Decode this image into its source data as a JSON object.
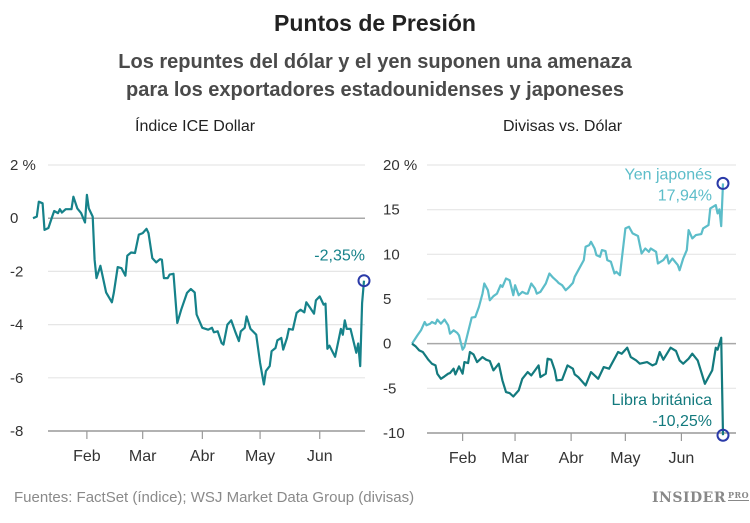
{
  "title": "Puntos de Presión",
  "subtitle": "Los repuntes del dólar y el yen suponen una amenaza para los exportadores estadounidenses y japoneses",
  "footer": "Fuentes: FactSet (índice); WSJ Market Data Group (divisas)",
  "logo": {
    "main": "INSIDER",
    "sup": "PRO"
  },
  "colors": {
    "dollar": "#16828a",
    "yen": "#5cbdc9",
    "pound": "#137a7e",
    "marker": "#2a3aa8",
    "grid": "#e6e6e6",
    "zero": "#a8a8a8"
  },
  "chart_data": [
    {
      "type": "line",
      "title": "Índice ICE Dollar",
      "ylim": [
        -8,
        2
      ],
      "yticks": [
        2,
        0,
        -2,
        -4,
        -6,
        -8
      ],
      "ytick_labels": [
        "2 %",
        "0",
        "-2",
        "-4",
        "-6",
        "-8"
      ],
      "xlim": [
        "2016-01-04",
        "2016-06-24"
      ],
      "xticks": [
        {
          "date": "2016-02-01",
          "label": "Feb"
        },
        {
          "date": "2016-03-01",
          "label": "Mar"
        },
        {
          "date": "2016-04-01",
          "label": "Abr"
        },
        {
          "date": "2016-05-01",
          "label": "May"
        },
        {
          "date": "2016-06-01",
          "label": "Jun"
        }
      ],
      "grid": true,
      "series": [
        {
          "key": "dollar",
          "end_label": "-2,35%",
          "x": [
            "01-04",
            "01-06",
            "01-07",
            "01-09",
            "01-10",
            "01-12",
            "01-14",
            "01-15",
            "01-17",
            "01-18",
            "01-19",
            "01-21",
            "01-24",
            "01-25",
            "01-27",
            "01-29",
            "01-31",
            "02-01",
            "02-02",
            "02-04",
            "02-05",
            "02-06",
            "02-08",
            "02-09",
            "02-11",
            "02-14",
            "02-15",
            "02-17",
            "02-19",
            "02-21",
            "02-22",
            "02-24",
            "02-26",
            "02-28",
            "03-01",
            "03-03",
            "03-04",
            "03-06",
            "03-08",
            "03-10",
            "03-11",
            "03-12",
            "03-14",
            "03-15",
            "03-17",
            "03-19",
            "03-21",
            "03-24",
            "03-26",
            "03-28",
            "03-29",
            "04-01",
            "04-04",
            "04-06",
            "04-07",
            "04-09",
            "04-11",
            "04-12",
            "04-14",
            "04-16",
            "04-18",
            "04-20",
            "04-21",
            "04-23",
            "04-24",
            "04-26",
            "04-29",
            "05-01",
            "05-03",
            "05-04",
            "05-06",
            "05-07",
            "05-09",
            "05-10",
            "05-12",
            "05-13",
            "05-15",
            "05-16",
            "05-18",
            "05-20",
            "05-22",
            "05-24",
            "05-25",
            "05-27",
            "05-29",
            "05-30",
            "06-01",
            "06-03",
            "06-04",
            "06-05",
            "06-06",
            "06-09",
            "06-12",
            "06-13",
            "06-14",
            "06-15",
            "06-17",
            "06-20",
            "06-21",
            "06-22",
            "06-23",
            "06-24"
          ],
          "y": [
            0,
            0.06,
            0.62,
            0.56,
            -0.44,
            -0.37,
            0.06,
            0.27,
            0.19,
            0.34,
            0.21,
            0.34,
            0.34,
            0.81,
            0.37,
            0.19,
            -0.16,
            0.88,
            0.37,
            0.06,
            -1.56,
            -2.25,
            -1.79,
            -2.12,
            -2.79,
            -3.16,
            -2.81,
            -1.84,
            -1.88,
            -2.16,
            -1.41,
            -1.29,
            -1.31,
            -0.62,
            -0.56,
            -0.4,
            -0.56,
            -1.5,
            -1.66,
            -1.54,
            -1.56,
            -2.25,
            -2.25,
            -2.12,
            -2.09,
            -3.94,
            -3.44,
            -2.81,
            -2.66,
            -2.79,
            -3.62,
            -4.12,
            -4.19,
            -4.12,
            -4.29,
            -4.25,
            -4.69,
            -4.75,
            -4.0,
            -3.84,
            -4.25,
            -4.62,
            -4.25,
            -4.12,
            -3.69,
            -4.16,
            -4.38,
            -5.44,
            -6.25,
            -5.75,
            -5.56,
            -5.0,
            -4.88,
            -4.59,
            -4.5,
            -4.94,
            -4.5,
            -4.16,
            -4.19,
            -3.56,
            -3.44,
            -3.54,
            -3.16,
            -3.37,
            -3.59,
            -3.09,
            -2.94,
            -3.25,
            -3.21,
            -4.91,
            -4.79,
            -5.21,
            -4.16,
            -4.38,
            -3.84,
            -4.16,
            -4.16,
            -5.06,
            -4.71,
            -5.56,
            -3.19,
            -2.35
          ]
        }
      ]
    },
    {
      "type": "line",
      "title": "Divisas vs. Dólar",
      "ylim": [
        -10,
        20
      ],
      "yticks": [
        20,
        15,
        10,
        5,
        0,
        -5,
        -10
      ],
      "ytick_labels": [
        "20 %",
        "15",
        "10",
        "5",
        "0",
        "-5",
        "-10"
      ],
      "xlim": [
        "2016-01-04",
        "2016-06-24"
      ],
      "xticks": [
        {
          "date": "2016-02-01",
          "label": "Feb"
        },
        {
          "date": "2016-03-01",
          "label": "Mar"
        },
        {
          "date": "2016-04-01",
          "label": "Abr"
        },
        {
          "date": "2016-05-01",
          "label": "May"
        },
        {
          "date": "2016-06-01",
          "label": "Jun"
        }
      ],
      "grid": true,
      "series": [
        {
          "key": "yen",
          "name": "Yen japonés",
          "end_label": "17,94%",
          "x": [
            "01-04",
            "01-07",
            "01-09",
            "01-11",
            "01-12",
            "01-14",
            "01-15",
            "01-17",
            "01-18",
            "01-20",
            "01-22",
            "01-24",
            "01-25",
            "01-27",
            "01-29",
            "01-30",
            "02-01",
            "02-02",
            "02-04",
            "02-06",
            "02-08",
            "02-10",
            "02-12",
            "02-13",
            "02-15",
            "02-16",
            "02-18",
            "02-20",
            "02-22",
            "02-23",
            "02-25",
            "02-27",
            "02-29",
            "03-01",
            "03-03",
            "03-05",
            "03-07",
            "03-08",
            "03-10",
            "03-12",
            "03-13",
            "03-15",
            "03-18",
            "03-20",
            "03-22",
            "03-24",
            "03-25",
            "03-27",
            "03-29",
            "03-31",
            "04-02",
            "04-03",
            "04-05",
            "04-08",
            "04-09",
            "04-11",
            "04-12",
            "04-14",
            "04-15",
            "04-17",
            "04-18",
            "04-20",
            "04-21",
            "04-23",
            "04-25",
            "04-26",
            "04-28",
            "05-01",
            "05-03",
            "05-05",
            "05-07",
            "05-08",
            "05-10",
            "05-12",
            "05-14",
            "05-15",
            "05-18",
            "05-19",
            "05-22",
            "05-24",
            "05-25",
            "05-27",
            "05-30",
            "05-31",
            "06-02",
            "06-04",
            "06-05",
            "06-07",
            "06-09",
            "06-12",
            "06-13",
            "06-16",
            "06-17",
            "06-20",
            "06-21",
            "06-22",
            "06-23",
            "06-24"
          ],
          "y": [
            0,
            0.93,
            1.5,
            2.43,
            2.06,
            2.24,
            2.43,
            2.24,
            2.69,
            2.24,
            2.69,
            2.06,
            1.12,
            1.5,
            1.2,
            0.93,
            -0.67,
            -0.37,
            1.31,
            2.92,
            2.99,
            4.11,
            5.61,
            6.73,
            5.98,
            4.86,
            5.31,
            5.61,
            6.54,
            6.36,
            7.29,
            7.1,
            5.42,
            6.54,
            5.42,
            5.79,
            5.61,
            5.61,
            6.73,
            6.17,
            5.61,
            5.79,
            6.73,
            7.85,
            7.4,
            7.03,
            6.8,
            6.54,
            5.98,
            6.36,
            6.8,
            7.48,
            8.22,
            9.35,
            10.84,
            11.03,
            11.4,
            10.65,
            9.91,
            9.72,
            10.47,
            10.36,
            9.35,
            9.16,
            7.85,
            8.04,
            7.66,
            12.9,
            13.08,
            12.34,
            12.15,
            12.04,
            10.09,
            10.65,
            10.28,
            10.65,
            10.28,
            8.97,
            9.35,
            9.91,
            8.97,
            9.53,
            8.79,
            8.22,
            9.53,
            10.47,
            12.71,
            11.78,
            12.15,
            12.26,
            12.9,
            13.27,
            15.14,
            15.51,
            14.58,
            15.03,
            13.16,
            17.94
          ]
        },
        {
          "key": "pound",
          "name": "Libra británica",
          "end_label": "-10,25%",
          "x": [
            "01-04",
            "01-06",
            "01-08",
            "01-10",
            "01-12",
            "01-13",
            "01-15",
            "01-17",
            "01-18",
            "01-20",
            "01-22",
            "01-24",
            "01-25",
            "01-27",
            "01-28",
            "01-30",
            "02-01",
            "02-02",
            "02-04",
            "02-05",
            "02-07",
            "02-09",
            "02-10",
            "02-12",
            "02-14",
            "02-16",
            "02-18",
            "02-21",
            "02-23",
            "02-25",
            "02-27",
            "02-29",
            "03-03",
            "03-05",
            "03-08",
            "03-10",
            "03-12",
            "03-14",
            "03-15",
            "03-18",
            "03-19",
            "03-21",
            "03-23",
            "03-24",
            "03-27",
            "03-30",
            "04-02",
            "04-03",
            "04-05",
            "04-09",
            "04-12",
            "04-16",
            "04-19",
            "04-22",
            "04-25",
            "04-27",
            "04-29",
            "05-02",
            "05-04",
            "05-07",
            "05-09",
            "05-13",
            "05-16",
            "05-18",
            "05-20",
            "05-22",
            "05-26",
            "05-29",
            "05-31",
            "06-02",
            "06-05",
            "06-07",
            "06-10",
            "06-12",
            "06-14",
            "06-16",
            "06-18",
            "06-20",
            "06-21",
            "06-23",
            "06-24"
          ],
          "y": [
            0,
            -0.3,
            -0.75,
            -0.93,
            -1.5,
            -1.79,
            -2.24,
            -2.43,
            -3.36,
            -3.93,
            -3.66,
            -3.36,
            -3.29,
            -2.8,
            -3.44,
            -2.54,
            -3.36,
            -2.06,
            -2.17,
            -0.93,
            -1.2,
            -2.06,
            -1.87,
            -1.5,
            -1.79,
            -1.94,
            -2.99,
            -2.24,
            -4.11,
            -5.42,
            -5.53,
            -5.91,
            -5.23,
            -3.93,
            -3.18,
            -3.55,
            -2.99,
            -2.43,
            -3.74,
            -3.36,
            -1.68,
            -1.79,
            -2.99,
            -4.11,
            -4.04,
            -2.43,
            -2.8,
            -3.44,
            -3.74,
            -4.67,
            -3.18,
            -3.93,
            -2.62,
            -2.8,
            -1.68,
            -0.93,
            -1.12,
            -0.45,
            -1.5,
            -1.87,
            -2.24,
            -2.06,
            -2.43,
            -2.24,
            -0.93,
            -1.79,
            -0.45,
            -0.82,
            -1.87,
            -2.24,
            -1.68,
            -1.12,
            -1.87,
            -3.18,
            -4.49,
            -3.74,
            -2.99,
            -0.45,
            -0.67,
            0.67,
            -10.25
          ]
        }
      ]
    }
  ]
}
